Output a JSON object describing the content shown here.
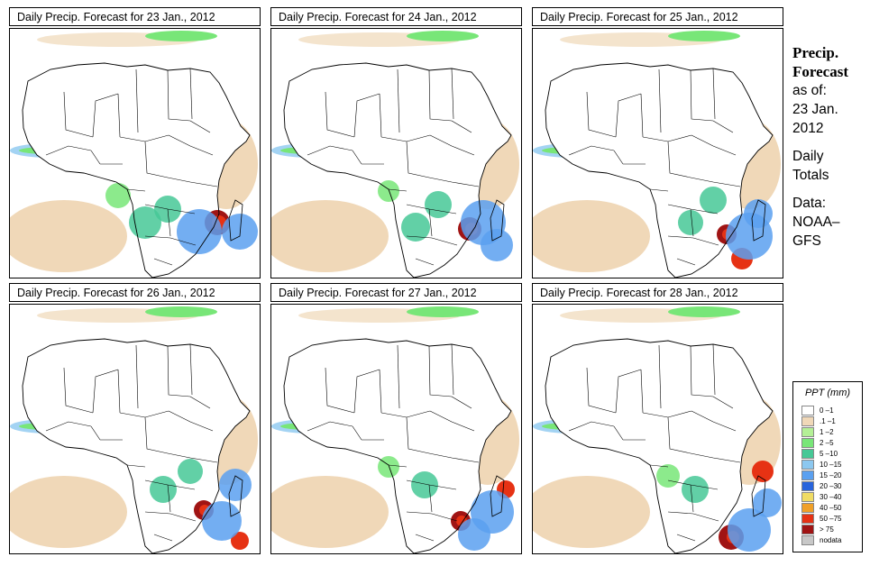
{
  "panels": [
    {
      "title": "Daily Precip. Forecast for  23 Jan., 2012"
    },
    {
      "title": "Daily Precip. Forecast for  24 Jan., 2012"
    },
    {
      "title": "Daily Precip. Forecast for  25 Jan., 2012"
    },
    {
      "title": "Daily Precip. Forecast for  26 Jan., 2012"
    },
    {
      "title": "Daily Precip. Forecast for  27 Jan., 2012"
    },
    {
      "title": "Daily Precip. Forecast for  28 Jan., 2012"
    }
  ],
  "side": {
    "heading1": "Precip.",
    "heading2": "Forecast",
    "asof": "as of:",
    "date1": "23 Jan.",
    "date2": "2012",
    "totals1": "Daily",
    "totals2": "Totals",
    "data1": "Data:",
    "data2": "NOAA–",
    "data3": "GFS"
  },
  "legend": {
    "title": "PPT (mm)",
    "items": [
      {
        "label": "0 –1",
        "color": "#ffffff"
      },
      {
        "label": ".1 –1",
        "color": "#f0d8b8"
      },
      {
        "label": "1 –2",
        "color": "#b4f096"
      },
      {
        "label": "2 –5",
        "color": "#78e678"
      },
      {
        "label": "5 –10",
        "color": "#46c896"
      },
      {
        "label": "10 –15",
        "color": "#8cc8f0"
      },
      {
        "label": "15 –20",
        "color": "#5aa0f0"
      },
      {
        "label": "20 –30",
        "color": "#2864dc"
      },
      {
        "label": "30 –40",
        "color": "#f0dc64"
      },
      {
        "label": "40 –50",
        "color": "#f0a028"
      },
      {
        "label": "50 –75",
        "color": "#e63214"
      },
      {
        "label": "> 75",
        "color": "#a01414"
      },
      {
        "label": "nodata",
        "color": "#c8c8c8"
      }
    ]
  }
}
